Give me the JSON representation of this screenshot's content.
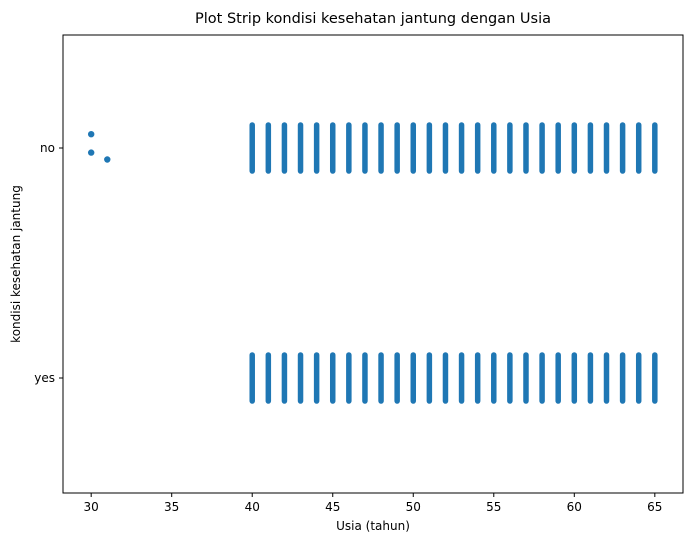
{
  "chart_data": {
    "type": "scatter",
    "subtype": "strip",
    "title": "Plot Strip kondisi kesehatan jantung dengan Usia",
    "xlabel": "Usia (tahun)",
    "ylabel": "kondisi kesehatan jantung",
    "xlim": [
      28.25,
      66.75
    ],
    "xticks": [
      30,
      35,
      40,
      45,
      50,
      55,
      60,
      65
    ],
    "categories": [
      "no",
      "yes"
    ],
    "grid": false,
    "legend": "none",
    "color": "#1f77b4",
    "series": [
      {
        "category": "no",
        "points": [
          [
            30,
            -0.06
          ],
          [
            30,
            0.02
          ],
          [
            31,
            0.05
          ]
        ],
        "strips": [
          {
            "from_age": 40,
            "to_age": 65,
            "step": 1,
            "jitter_range": [
              -0.1,
              0.1
            ]
          }
        ]
      },
      {
        "category": "yes",
        "points": [],
        "strips": [
          {
            "from_age": 40,
            "to_age": 65,
            "step": 1,
            "jitter_range": [
              -0.1,
              0.1
            ]
          }
        ]
      }
    ]
  }
}
